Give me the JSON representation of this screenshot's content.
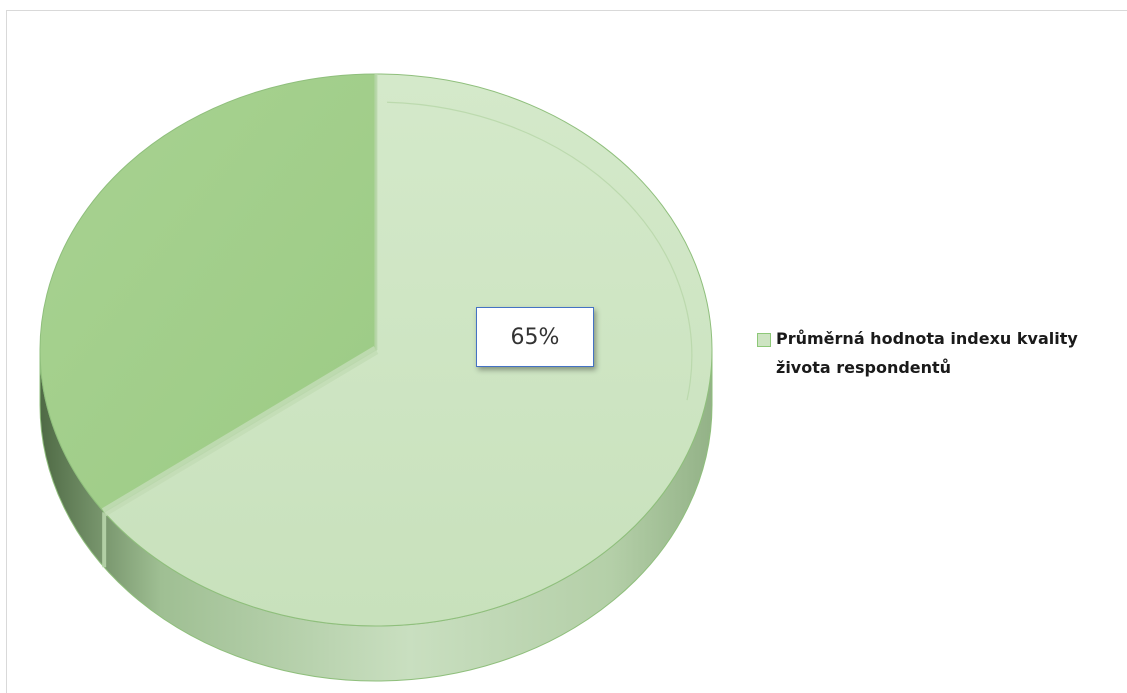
{
  "chart_data": {
    "type": "pie",
    "style": "3d",
    "categories": [
      "Průměrná hodnota indexu kvality života respondentů"
    ],
    "values": [
      65
    ],
    "unit": "%",
    "data_labels": [
      "65%"
    ],
    "legend": {
      "entries": [
        "Průměrná hodnota indexu kvality života respondentů"
      ],
      "position": "right"
    },
    "colors": {
      "main_slice": "#cde4c2",
      "remainder_slice": "#a5d08e",
      "edge": "#8fbf7c"
    }
  }
}
